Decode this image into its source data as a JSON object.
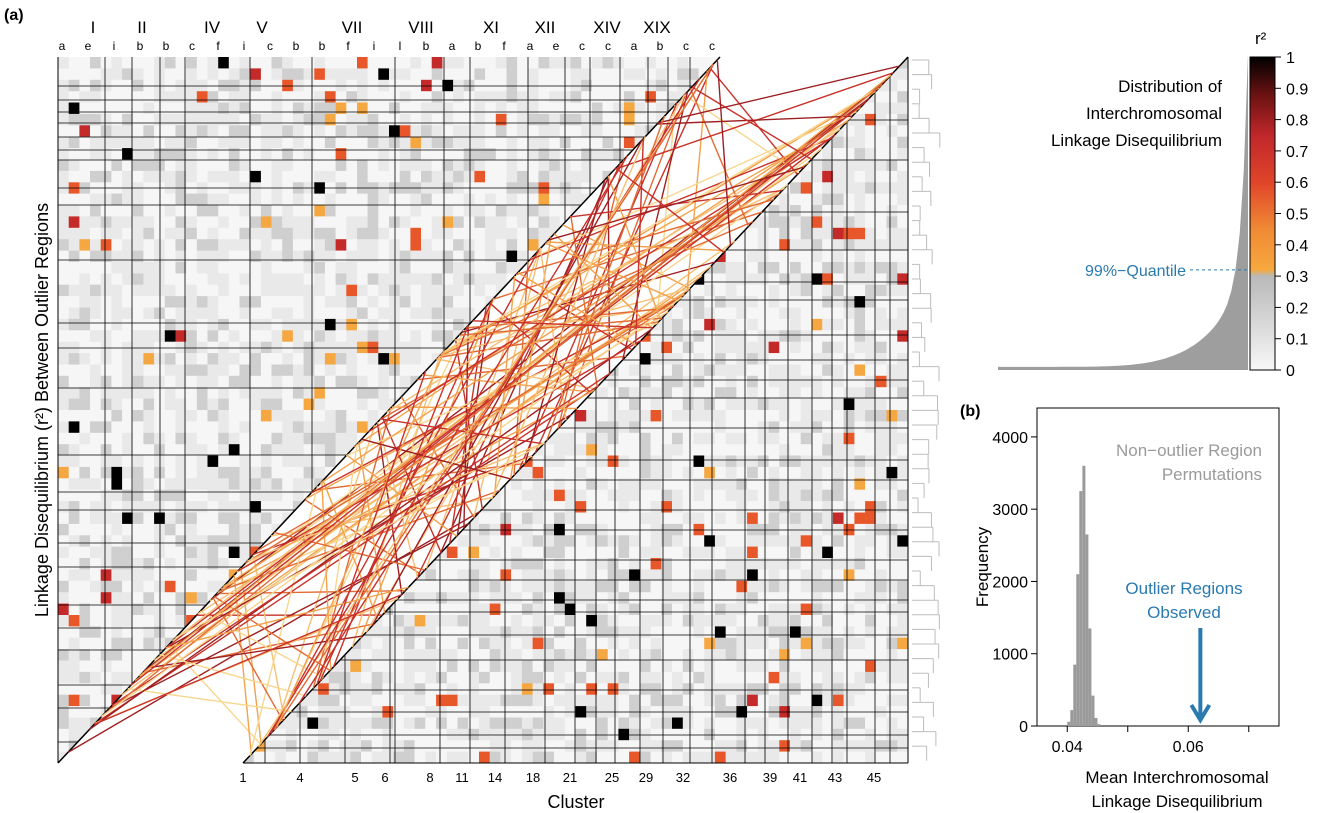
{
  "panel_a": {
    "label": "(a)",
    "y_axis_label": "Linkage Disequilibrium (r²) Between Outlier Regions",
    "x_axis_label": "Cluster",
    "chromosomes": [
      "I",
      "II",
      "IV",
      "V",
      "VII",
      "VIII",
      "XI",
      "XII",
      "XIV",
      "XIX"
    ],
    "region_letters": [
      "a",
      "e",
      "i",
      "b",
      "b",
      "c",
      "f",
      "i",
      "c",
      "b",
      "b",
      "f",
      "i",
      "l",
      "b",
      "a",
      "b",
      "f",
      "a",
      "e",
      "c",
      "c",
      "a",
      "b",
      "c",
      "c"
    ],
    "cluster_ticks": [
      "1",
      "4",
      "5",
      "6",
      "8",
      "11",
      "14",
      "18",
      "21",
      "25",
      "29",
      "32",
      "36",
      "39",
      "41",
      "43",
      "45"
    ]
  },
  "legend": {
    "title_lines": [
      "Distribution of",
      "Interchromosomal",
      "Linkage Disequilibrium"
    ],
    "r2_label": "r²",
    "ticks": [
      "0",
      "0.1",
      "0.2",
      "0.3",
      "0.4",
      "0.5",
      "0.6",
      "0.7",
      "0.8",
      "0.9",
      "1"
    ],
    "quantile_label": "99%−Quantile",
    "quantile_value": 0.32
  },
  "chart_data": [
    {
      "type": "heatmap",
      "title": "",
      "ylabel": "Linkage Disequilibrium (r²) Between Outlier Regions",
      "xlabel": "Cluster",
      "value_range": [
        0,
        1
      ],
      "color_scale": [
        "#f4f4f4",
        "#c9c9c9",
        "#f5a742",
        "#e8572a",
        "#c52a2a",
        "#7c1414",
        "#000000"
      ],
      "grid": true
    },
    {
      "type": "bar",
      "title": "",
      "panel_label": "(b)",
      "xlabel": "Mean Interchromosomal Linkage Disequilibrium",
      "ylabel": "Frequency",
      "xlim": [
        0.035,
        0.075
      ],
      "ylim": [
        0,
        4400
      ],
      "x_ticks": [
        "0.04",
        "0.06"
      ],
      "y_ticks": [
        "0",
        "1000",
        "2000",
        "3000",
        "4000"
      ],
      "bin_edges": [
        0.04,
        0.0405,
        0.041,
        0.0415,
        0.042,
        0.0425,
        0.043,
        0.0435,
        0.044,
        0.0445,
        0.045,
        0.0455
      ],
      "values": [
        60,
        220,
        850,
        2100,
        3250,
        3600,
        2650,
        1350,
        420,
        110,
        25
      ],
      "annotations": {
        "permutations_lines": [
          "Non−outlier Region",
          "Permutations"
        ],
        "observed_lines": [
          "Outlier Regions",
          "Observed"
        ],
        "observed_value": 0.062
      }
    }
  ]
}
